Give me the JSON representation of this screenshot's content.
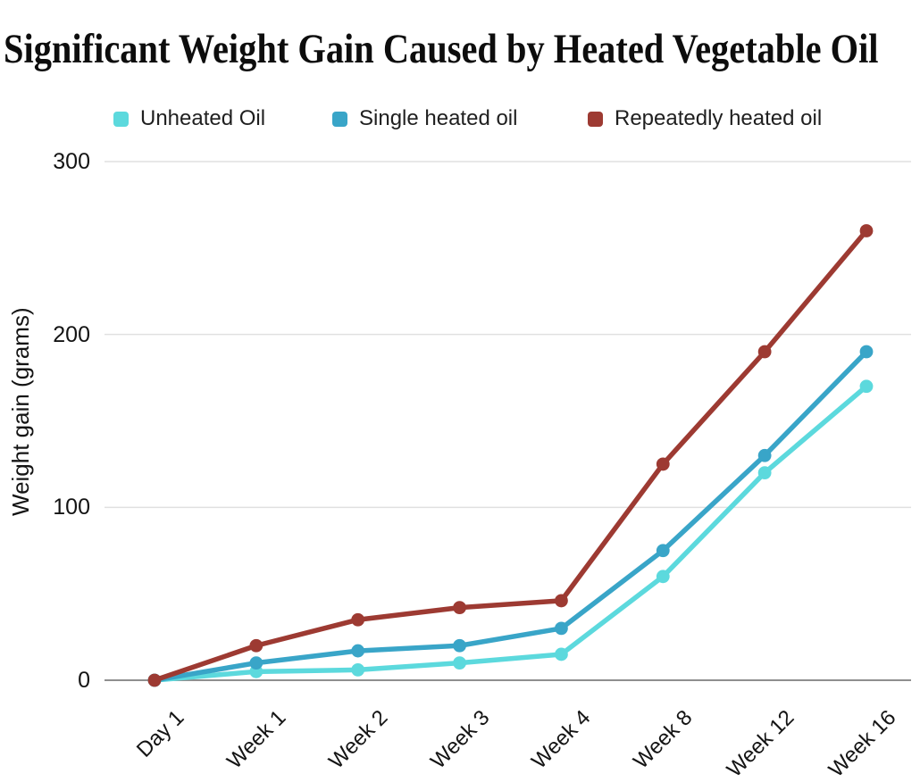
{
  "chart_data": {
    "type": "line",
    "title": "Significant Weight Gain Caused by Heated Vegetable Oil",
    "categories": [
      "Day 1",
      "Week 1",
      "Week 2",
      "Week 3",
      "Week 4",
      "Week 8",
      "Week 12",
      "Week 16"
    ],
    "series": [
      {
        "name": "Unheated Oil",
        "color": "#5CD9DD",
        "values": [
          0,
          5,
          6,
          10,
          15,
          60,
          120,
          170
        ]
      },
      {
        "name": "Single heated oil",
        "color": "#39A5C8",
        "values": [
          0,
          10,
          17,
          20,
          30,
          75,
          130,
          190
        ]
      },
      {
        "name": "Repeatedly heated oil",
        "color": "#9D3A32",
        "values": [
          0,
          20,
          35,
          42,
          46,
          125,
          190,
          260
        ]
      }
    ],
    "xlabel": "",
    "ylabel": "Weight gain (grams)",
    "ylim": [
      0,
      300
    ],
    "yticks": [
      0,
      100,
      200,
      300
    ],
    "grid": true,
    "legend_position": "top",
    "marker": "circle"
  },
  "colors": {
    "background": "#ffffff",
    "gridline": "#e0e0e0",
    "axis_line": "#8f8f8f",
    "text": "#141414",
    "title_text": "#0d0d0d"
  }
}
